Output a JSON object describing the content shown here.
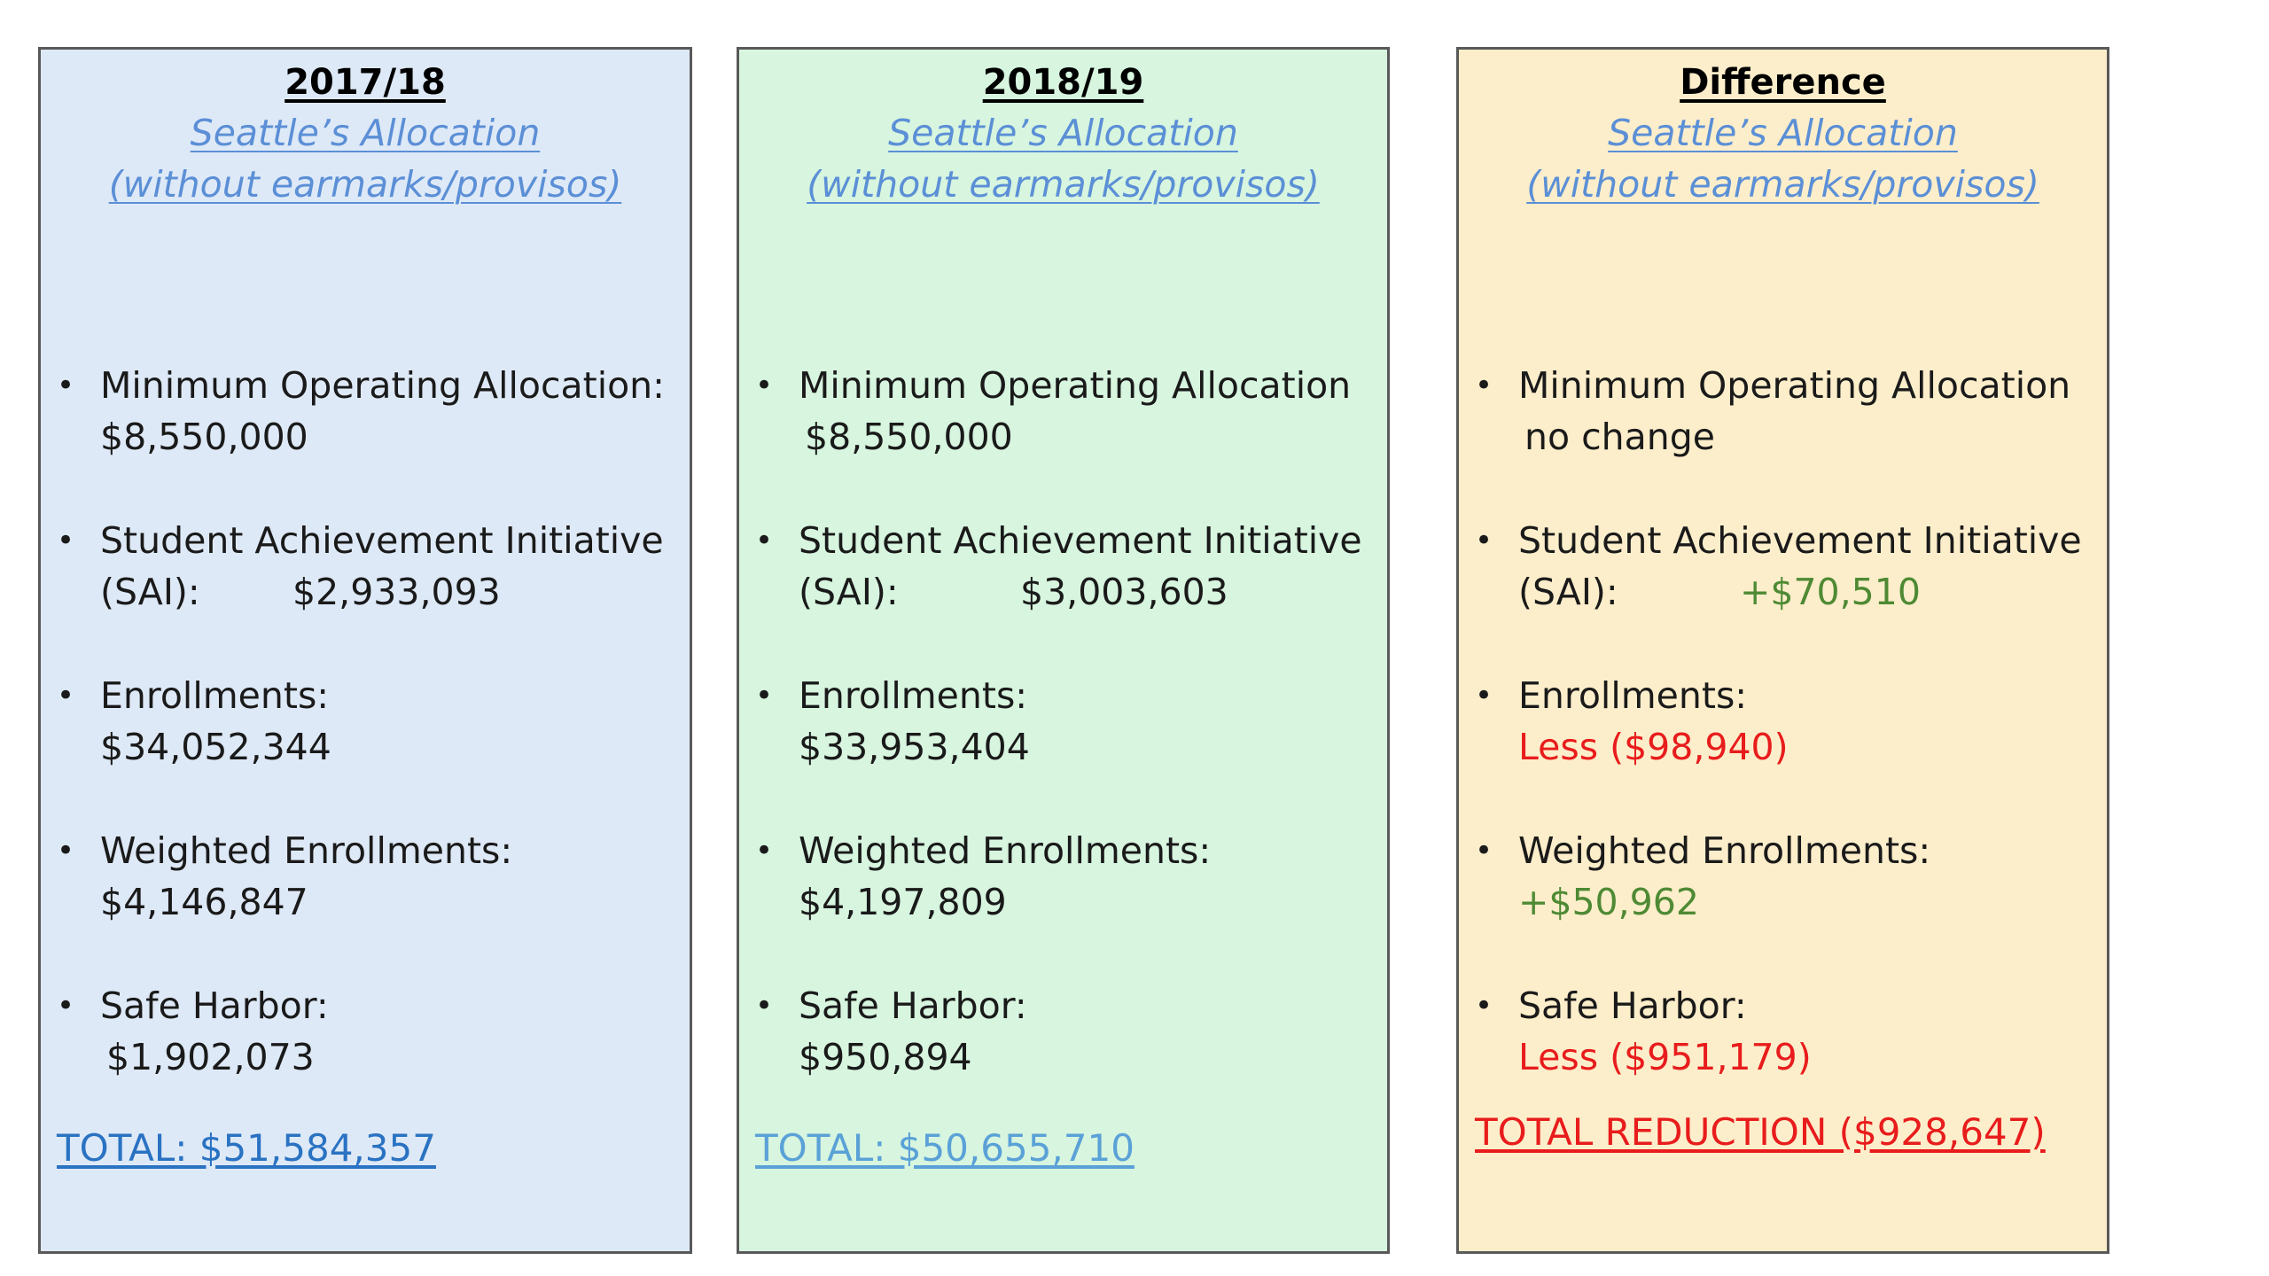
{
  "panels": [
    {
      "title": "2017/18",
      "subtitle_line1": "Seattle’s Allocation",
      "subtitle_line2": "(without earmarks/provisos)",
      "items": [
        {
          "label": "Minimum Operating Allocation:",
          "value": "$8,550,000"
        },
        {
          "label": "Student Achievement Initiative",
          "sai_label": "(SAI):",
          "value": "$2,933,093"
        },
        {
          "label": "Enrollments:",
          "value": "$34,052,344"
        },
        {
          "label": "Weighted Enrollments:",
          "value": "$4,146,847"
        },
        {
          "label": "Safe Harbor:",
          "value": "$1,902,073"
        }
      ],
      "total": "TOTAL: $51,584,357"
    },
    {
      "title": "2018/19",
      "subtitle_line1": "Seattle’s Allocation",
      "subtitle_line2": "(without earmarks/provisos)",
      "items": [
        {
          "label": "Minimum Operating Allocation",
          "value": "$8,550,000"
        },
        {
          "label": "Student Achievement Initiative",
          "sai_label": "(SAI):",
          "value": "$3,003,603"
        },
        {
          "label": "Enrollments:",
          "value": "$33,953,404"
        },
        {
          "label": "Weighted Enrollments:",
          "value": "$4,197,809"
        },
        {
          "label": "Safe Harbor:",
          "value": "$950,894"
        }
      ],
      "total": "TOTAL: $50,655,710"
    },
    {
      "title": "Difference",
      "subtitle_line1": "Seattle’s Allocation",
      "subtitle_line2": "(without earmarks/provisos)",
      "items": [
        {
          "label": "Minimum Operating Allocation",
          "value": "no change"
        },
        {
          "label": "Student Achievement Initiative",
          "sai_label": "(SAI):",
          "value": "+$70,510"
        },
        {
          "label": "Enrollments:",
          "value": "Less ($98,940)"
        },
        {
          "label": "Weighted Enrollments:",
          "value": "+$50,962"
        },
        {
          "label": "Safe Harbor:",
          "value": "Less ($951,179)"
        }
      ],
      "total": "TOTAL REDUCTION ($928,647)"
    }
  ],
  "bullet_glyph": "•",
  "colors": {
    "panel_2017_bg": "#dee9f7",
    "panel_2018_bg": "#d7f5df",
    "panel_diff_bg": "#fdeecb",
    "subtitle": "#5b8fd6",
    "increase_green": "#4e8a34",
    "decrease_red": "#e81c1c"
  }
}
